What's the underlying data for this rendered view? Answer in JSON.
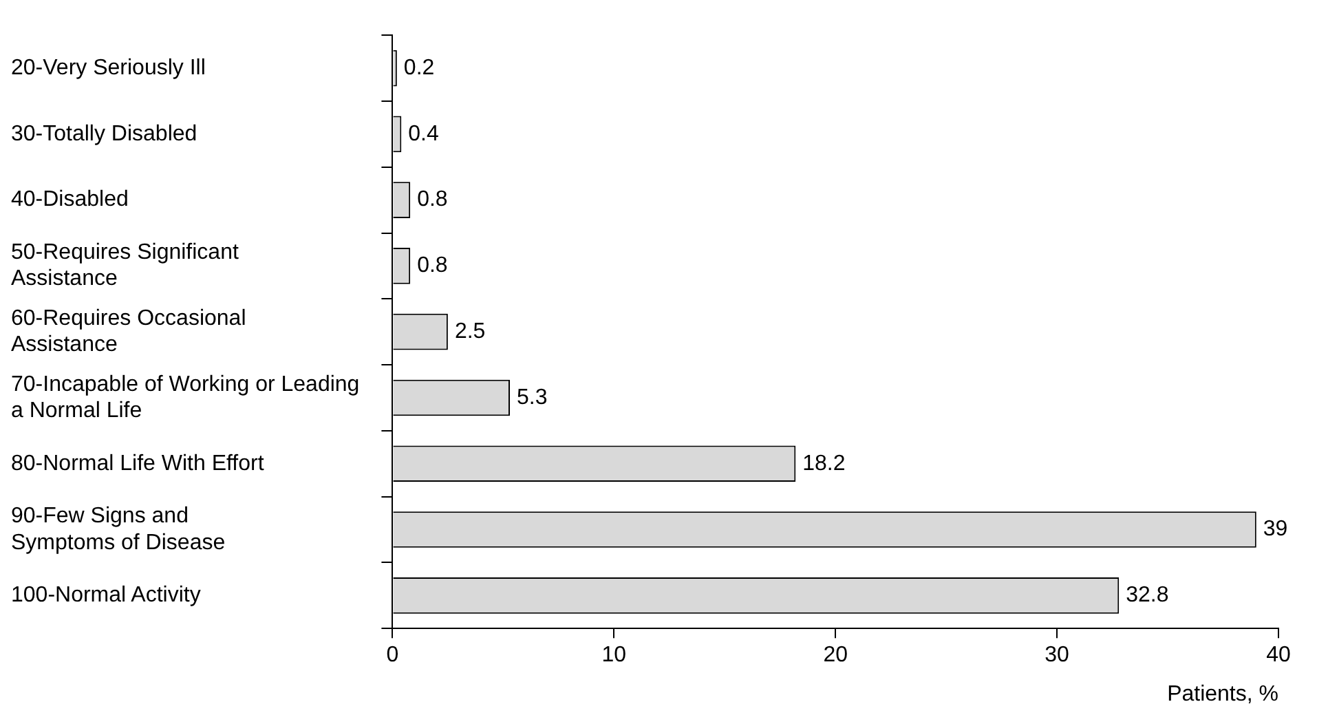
{
  "chart_data": {
    "type": "bar",
    "orientation": "horizontal",
    "xlabel": "Patients, %",
    "categories": [
      "20-Very Seriously Ill",
      "30-Totally Disabled",
      "40-Disabled",
      "50-Requires Significant\nAssistance",
      "60-Requires Occasional\nAssistance",
      "70-Incapable of Working or Leading\na Normal Life",
      "80-Normal Life With Effort",
      "90-Few Signs and\nSymptoms of Disease",
      "100-Normal Activity"
    ],
    "values": [
      0.2,
      0.4,
      0.8,
      0.8,
      2.5,
      5.3,
      18.2,
      39,
      32.8
    ],
    "color": "#d9d9d9",
    "xlim": [
      0,
      40
    ],
    "xticks": [
      0,
      10,
      20,
      30,
      40
    ],
    "grid": false,
    "legend": false,
    "data_labels": true
  }
}
